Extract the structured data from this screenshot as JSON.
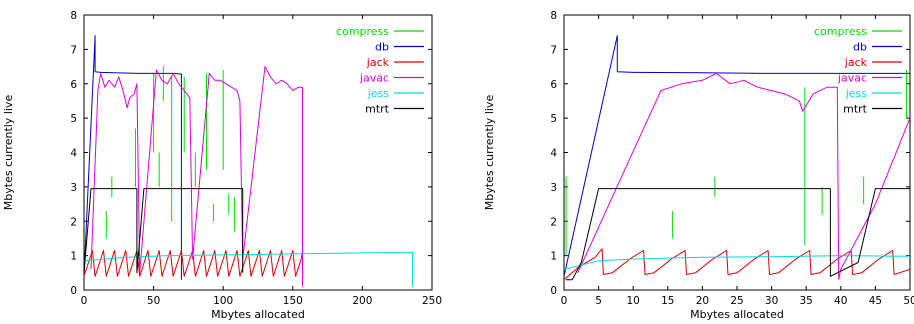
{
  "chart_data": [
    {
      "type": "line",
      "xlabel": "Mbytes allocated",
      "ylabel": "Mbytes currently live",
      "xlim": [
        0,
        250
      ],
      "ylim": [
        0,
        8
      ],
      "xticks": [
        "0",
        "50",
        "100",
        "150",
        "200",
        "250"
      ],
      "yticks": [
        "0",
        "1",
        "2",
        "3",
        "4",
        "5",
        "6",
        "7",
        "8"
      ],
      "legend_position": "top-right",
      "series": [
        {
          "name": "compress",
          "color": "#00dd00",
          "segments": [
            [
              [
                16,
                1.5
              ],
              [
                16,
                2.3
              ]
            ],
            [
              [
                20,
                2.7
              ],
              [
                20,
                3.3
              ]
            ],
            [
              [
                37,
                3.0
              ],
              [
                37,
                4.7
              ]
            ],
            [
              [
                50,
                4.0
              ],
              [
                50,
                6.3
              ]
            ],
            [
              [
                54,
                3.0
              ],
              [
                54,
                4.0
              ]
            ],
            [
              [
                57,
                5.5
              ],
              [
                57,
                6.5
              ]
            ],
            [
              [
                63,
                2.0
              ],
              [
                63,
                6.2
              ]
            ],
            [
              [
                72,
                4.0
              ],
              [
                72,
                6.2
              ]
            ],
            [
              [
                80,
                3.0
              ],
              [
                80,
                4.0
              ]
            ],
            [
              [
                88,
                3.5
              ],
              [
                88,
                6.3
              ]
            ],
            [
              [
                93,
                2.0
              ],
              [
                93,
                2.5
              ]
            ],
            [
              [
                100,
                3.5
              ],
              [
                100,
                6.4
              ]
            ],
            [
              [
                104,
                2.2
              ],
              [
                104,
                2.8
              ]
            ],
            [
              [
                108,
                1.7
              ],
              [
                108,
                2.7
              ]
            ]
          ]
        },
        {
          "name": "db",
          "color": "#0000cc",
          "points": [
            [
              0,
              0.4
            ],
            [
              8,
              7.4
            ],
            [
              8,
              6.35
            ],
            [
              12,
              6.33
            ],
            [
              40,
              6.3
            ],
            [
              65,
              6.3
            ],
            [
              70,
              6.28
            ],
            [
              70,
              0.3
            ]
          ]
        },
        {
          "name": "jack",
          "color": "#dd0000",
          "points": [
            [
              0,
              0.4
            ],
            [
              4,
              0.9
            ],
            [
              6,
              1.15
            ],
            [
              8,
              0.4
            ],
            [
              12,
              0.9
            ],
            [
              14,
              1.15
            ],
            [
              16,
              0.4
            ],
            [
              20,
              0.9
            ],
            [
              22,
              1.15
            ],
            [
              24,
              0.4
            ],
            [
              28,
              0.9
            ],
            [
              30,
              1.15
            ],
            [
              32,
              0.4
            ],
            [
              36,
              0.9
            ],
            [
              38,
              1.15
            ],
            [
              40,
              0.4
            ],
            [
              44,
              0.9
            ],
            [
              46,
              1.15
            ],
            [
              48,
              0.4
            ],
            [
              52,
              0.9
            ],
            [
              54,
              1.15
            ],
            [
              56,
              0.4
            ],
            [
              60,
              0.9
            ],
            [
              62,
              1.15
            ],
            [
              64,
              0.4
            ],
            [
              68,
              0.9
            ],
            [
              70,
              1.15
            ],
            [
              72,
              0.4
            ],
            [
              76,
              0.9
            ],
            [
              78,
              1.15
            ],
            [
              80,
              0.4
            ],
            [
              84,
              0.9
            ],
            [
              86,
              1.15
            ],
            [
              88,
              0.4
            ],
            [
              92,
              0.9
            ],
            [
              94,
              1.15
            ],
            [
              96,
              0.4
            ],
            [
              100,
              0.9
            ],
            [
              102,
              1.15
            ],
            [
              104,
              0.4
            ],
            [
              108,
              0.9
            ],
            [
              110,
              1.15
            ],
            [
              112,
              0.4
            ],
            [
              116,
              0.9
            ],
            [
              118,
              1.15
            ],
            [
              120,
              0.4
            ],
            [
              124,
              0.9
            ],
            [
              126,
              1.15
            ],
            [
              128,
              0.4
            ],
            [
              132,
              0.9
            ],
            [
              134,
              1.15
            ],
            [
              136,
              0.4
            ],
            [
              140,
              0.9
            ],
            [
              142,
              1.15
            ],
            [
              144,
              0.4
            ],
            [
              148,
              0.9
            ],
            [
              150,
              1.15
            ],
            [
              152,
              0.4
            ],
            [
              156,
              0.9
            ],
            [
              157,
              1.15
            ],
            [
              157,
              0.2
            ]
          ]
        },
        {
          "name": "javac",
          "color": "#dd00dd",
          "points": [
            [
              5,
              0.6
            ],
            [
              10,
              5.8
            ],
            [
              12,
              6.3
            ],
            [
              15,
              5.9
            ],
            [
              18,
              6.1
            ],
            [
              22,
              5.9
            ],
            [
              25,
              6.2
            ],
            [
              28,
              5.8
            ],
            [
              31,
              5.3
            ],
            [
              33,
              5.6
            ],
            [
              36,
              5.7
            ],
            [
              38,
              6.0
            ],
            [
              40,
              0.5
            ],
            [
              52,
              6.4
            ],
            [
              56,
              6.1
            ],
            [
              60,
              6.0
            ],
            [
              64,
              6.3
            ],
            [
              68,
              6.0
            ],
            [
              72,
              5.8
            ],
            [
              76,
              5.6
            ],
            [
              78,
              0.9
            ],
            [
              90,
              6.3
            ],
            [
              94,
              6.1
            ],
            [
              98,
              6.1
            ],
            [
              102,
              6.0
            ],
            [
              106,
              5.9
            ],
            [
              110,
              5.8
            ],
            [
              112,
              5.5
            ],
            [
              114,
              0.9
            ],
            [
              130,
              6.5
            ],
            [
              134,
              6.2
            ],
            [
              138,
              6.0
            ],
            [
              142,
              6.1
            ],
            [
              146,
              6.0
            ],
            [
              150,
              5.8
            ],
            [
              154,
              5.9
            ],
            [
              157,
              5.9
            ],
            [
              157,
              0.1
            ]
          ]
        },
        {
          "name": "jess",
          "color": "#00dddd",
          "points": [
            [
              0,
              0.85
            ],
            [
              30,
              0.95
            ],
            [
              60,
              1.0
            ],
            [
              100,
              1.02
            ],
            [
              150,
              1.05
            ],
            [
              200,
              1.08
            ],
            [
              236,
              1.1
            ],
            [
              236,
              0.1
            ]
          ]
        },
        {
          "name": "mtrt",
          "color": "#000000",
          "points": [
            [
              0,
              0.5
            ],
            [
              5,
              2.95
            ],
            [
              38,
              2.95
            ],
            [
              38,
              0.5
            ],
            [
              43,
              2.95
            ],
            [
              114,
              2.95
            ],
            [
              114,
              0.5
            ]
          ]
        }
      ]
    },
    {
      "type": "line",
      "xlabel": "Mbytes allocated",
      "ylabel": "Mbytes currently live",
      "xlim": [
        0,
        50
      ],
      "ylim": [
        0,
        8
      ],
      "xticks": [
        "0",
        "5",
        "10",
        "15",
        "20",
        "25",
        "30",
        "35",
        "40",
        "45",
        "50"
      ],
      "yticks": [
        "0",
        "1",
        "2",
        "3",
        "4",
        "5",
        "6",
        "7",
        "8"
      ],
      "legend_position": "top-right",
      "series": [
        {
          "name": "compress",
          "color": "#00dd00",
          "segments": [
            [
              [
                0.3,
                1.0
              ],
              [
                0.3,
                3.3
              ]
            ],
            [
              [
                15.7,
                1.5
              ],
              [
                15.7,
                2.3
              ]
            ],
            [
              [
                21.8,
                2.7
              ],
              [
                21.8,
                3.3
              ]
            ],
            [
              [
                34.8,
                1.3
              ],
              [
                34.8,
                5.9
              ]
            ],
            [
              [
                37.3,
                2.2
              ],
              [
                37.3,
                3.0
              ]
            ],
            [
              [
                43.3,
                2.5
              ],
              [
                43.3,
                3.3
              ]
            ],
            [
              [
                49.5,
                5.0
              ],
              [
                49.5,
                6.4
              ]
            ]
          ]
        },
        {
          "name": "db",
          "color": "#0000cc",
          "points": [
            [
              0,
              0.4
            ],
            [
              7.7,
              7.4
            ],
            [
              7.7,
              6.35
            ],
            [
              10,
              6.33
            ],
            [
              20,
              6.32
            ],
            [
              30,
              6.3
            ],
            [
              40,
              6.3
            ],
            [
              50,
              6.3
            ]
          ]
        },
        {
          "name": "jack",
          "color": "#dd0000",
          "points": [
            [
              0,
              0.3
            ],
            [
              2,
              0.65
            ],
            [
              4.5,
              0.95
            ],
            [
              5.5,
              1.2
            ],
            [
              5.7,
              0.45
            ],
            [
              7,
              0.5
            ],
            [
              9.5,
              0.9
            ],
            [
              11.5,
              1.15
            ],
            [
              11.7,
              0.45
            ],
            [
              13,
              0.5
            ],
            [
              15.5,
              0.9
            ],
            [
              17.5,
              1.15
            ],
            [
              17.7,
              0.45
            ],
            [
              19,
              0.5
            ],
            [
              21.5,
              0.9
            ],
            [
              23.5,
              1.15
            ],
            [
              23.7,
              0.45
            ],
            [
              25,
              0.5
            ],
            [
              27.5,
              0.9
            ],
            [
              29.5,
              1.15
            ],
            [
              29.7,
              0.45
            ],
            [
              31,
              0.5
            ],
            [
              33.5,
              0.9
            ],
            [
              35.5,
              1.15
            ],
            [
              35.7,
              0.45
            ],
            [
              37,
              0.5
            ],
            [
              39.5,
              0.9
            ],
            [
              41.5,
              1.15
            ],
            [
              41.7,
              0.45
            ],
            [
              43,
              0.5
            ],
            [
              45.5,
              0.9
            ],
            [
              47.5,
              1.15
            ],
            [
              47.7,
              0.45
            ],
            [
              50,
              0.6
            ]
          ]
        },
        {
          "name": "javac",
          "color": "#dd00dd",
          "points": [
            [
              2,
              0.5
            ],
            [
              14,
              5.8
            ],
            [
              17,
              6.0
            ],
            [
              20,
              6.1
            ],
            [
              22,
              6.3
            ],
            [
              24,
              6.0
            ],
            [
              26,
              6.1
            ],
            [
              28,
              5.9
            ],
            [
              30,
              5.8
            ],
            [
              32,
              5.7
            ],
            [
              34,
              5.5
            ],
            [
              34.5,
              5.2
            ],
            [
              36,
              5.7
            ],
            [
              38,
              5.9
            ],
            [
              39.5,
              5.9
            ],
            [
              39.7,
              0.3
            ],
            [
              40,
              0.6
            ],
            [
              45,
              2.5
            ],
            [
              50,
              5.0
            ]
          ]
        },
        {
          "name": "jess",
          "color": "#00dddd",
          "points": [
            [
              0,
              0.6
            ],
            [
              5,
              0.85
            ],
            [
              10,
              0.9
            ],
            [
              20,
              0.95
            ],
            [
              30,
              0.97
            ],
            [
              40,
              1.0
            ],
            [
              50,
              0.98
            ]
          ]
        },
        {
          "name": "mtrt",
          "color": "#000000",
          "points": [
            [
              0.3,
              0.3
            ],
            [
              1.2,
              0.3
            ],
            [
              2.5,
              0.8
            ],
            [
              5,
              2.95
            ],
            [
              38.5,
              2.95
            ],
            [
              38.5,
              0.4
            ],
            [
              42.5,
              0.8
            ],
            [
              45,
              2.95
            ],
            [
              50,
              2.95
            ]
          ]
        }
      ]
    }
  ]
}
